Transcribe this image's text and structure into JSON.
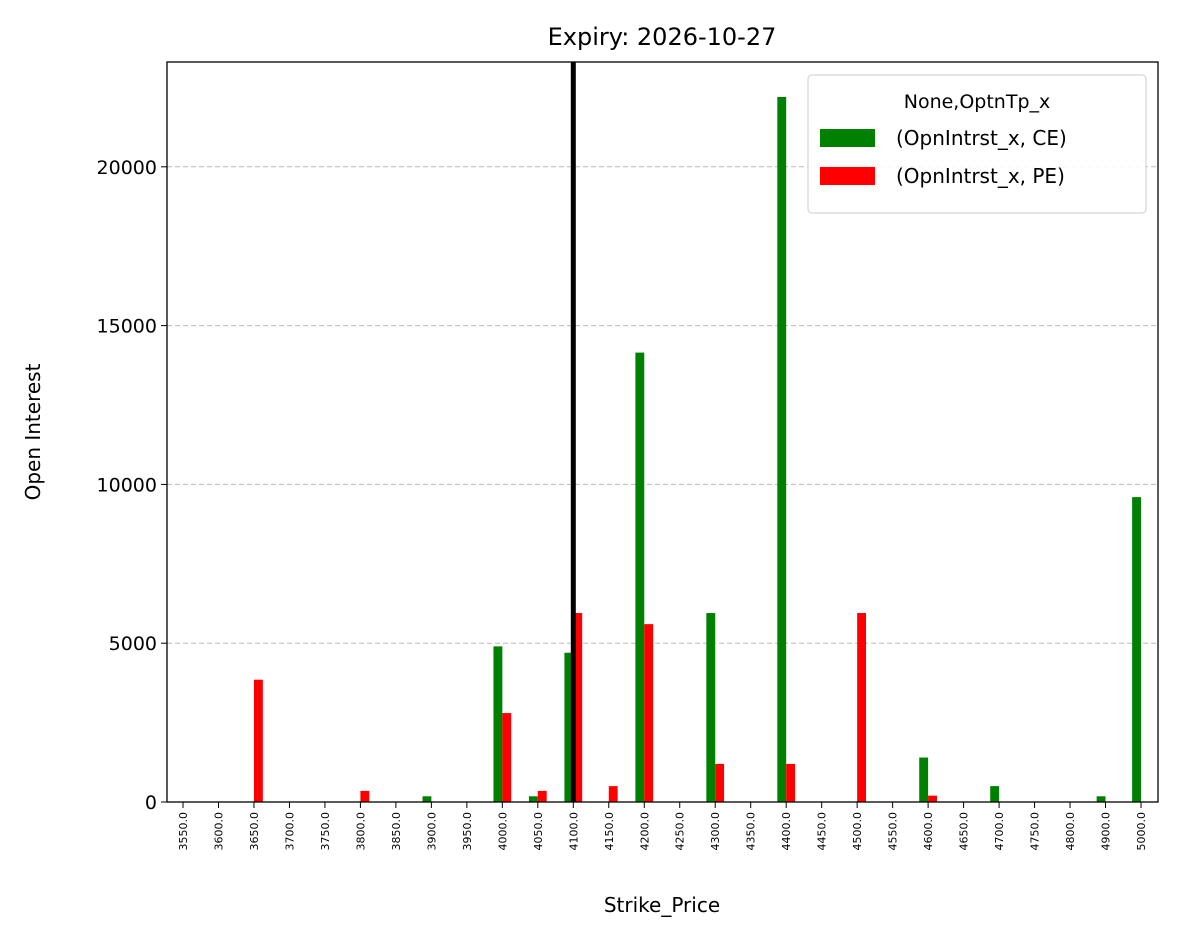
{
  "chart_data": {
    "type": "bar",
    "title": "Expiry: 2026-10-27",
    "x_label": "Strike_Price",
    "y_label": "Open Interest",
    "categories": [
      "3550.0",
      "3600.0",
      "3650.0",
      "3700.0",
      "3750.0",
      "3800.0",
      "3850.0",
      "3900.0",
      "3950.0",
      "4000.0",
      "4050.0",
      "4100.0",
      "4150.0",
      "4200.0",
      "4250.0",
      "4300.0",
      "4350.0",
      "4400.0",
      "4450.0",
      "4500.0",
      "4550.0",
      "4600.0",
      "4650.0",
      "4700.0",
      "4750.0",
      "4800.0",
      "4900.0",
      "5000.0"
    ],
    "series": [
      {
        "name": "(OpnIntrst_x, CE)",
        "color": "#008000",
        "values": [
          0,
          0,
          0,
          0,
          0,
          0,
          0,
          180,
          0,
          4900,
          180,
          4700,
          0,
          14150,
          0,
          5950,
          0,
          22200,
          0,
          0,
          0,
          1400,
          0,
          500,
          0,
          0,
          180,
          9600
        ]
      },
      {
        "name": "(OpnIntrst_x, PE)",
        "color": "#ff0000",
        "values": [
          0,
          0,
          3850,
          0,
          0,
          350,
          0,
          0,
          0,
          2800,
          350,
          5950,
          500,
          5600,
          0,
          1200,
          0,
          1200,
          0,
          5950,
          0,
          200,
          0,
          0,
          0,
          0,
          0,
          0
        ]
      }
    ],
    "legend_title": "None,OptnTp_x",
    "legend": "upper right",
    "vline_category": "4100.0",
    "vline_color": "#000000",
    "ylim": [
      0,
      23300
    ],
    "yticks": [
      0,
      5000,
      10000,
      15000,
      20000
    ],
    "grid": true
  }
}
